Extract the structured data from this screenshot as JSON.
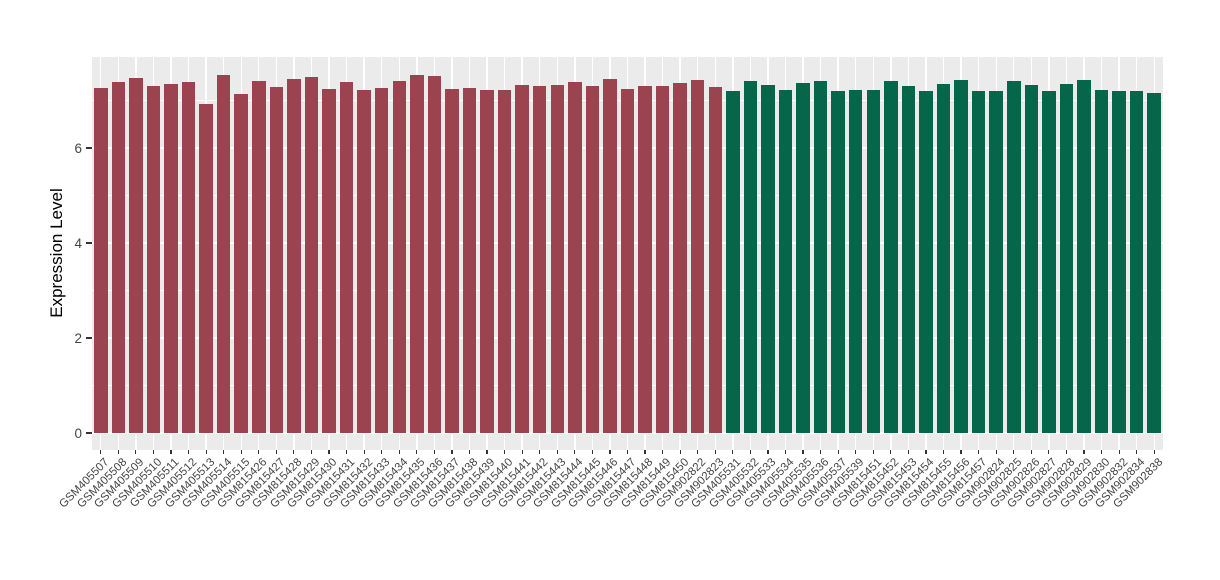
{
  "chart_data": {
    "type": "bar",
    "title": "",
    "xlabel": "",
    "ylabel": "Expression Level",
    "y_ticks": [
      0,
      2,
      4,
      6
    ],
    "ylim": [
      0,
      7.92
    ],
    "grid": "on",
    "legend": "none",
    "colors": {
      "panel_background": "#EBEBEB",
      "gridline": "#FFFFFF",
      "group_a_red": "#9B4450",
      "group_b_green": "#066649",
      "axis_text": "#454545",
      "axis_title": "#000000"
    },
    "samples": [
      {
        "id": "GSM405507",
        "value": 7.26,
        "group": "a"
      },
      {
        "id": "GSM405508",
        "value": 7.4,
        "group": "a"
      },
      {
        "id": "GSM405509",
        "value": 7.48,
        "group": "a"
      },
      {
        "id": "GSM405510",
        "value": 7.31,
        "group": "a"
      },
      {
        "id": "GSM405511",
        "value": 7.35,
        "group": "a"
      },
      {
        "id": "GSM405512",
        "value": 7.39,
        "group": "a"
      },
      {
        "id": "GSM405513",
        "value": 6.93,
        "group": "a"
      },
      {
        "id": "GSM405514",
        "value": 7.53,
        "group": "a"
      },
      {
        "id": "GSM405515",
        "value": 7.13,
        "group": "a"
      },
      {
        "id": "GSM815426",
        "value": 7.42,
        "group": "a"
      },
      {
        "id": "GSM815427",
        "value": 7.29,
        "group": "a"
      },
      {
        "id": "GSM815428",
        "value": 7.45,
        "group": "a"
      },
      {
        "id": "GSM815429",
        "value": 7.49,
        "group": "a"
      },
      {
        "id": "GSM815430",
        "value": 7.25,
        "group": "a"
      },
      {
        "id": "GSM815431",
        "value": 7.4,
        "group": "a"
      },
      {
        "id": "GSM815432",
        "value": 7.23,
        "group": "a"
      },
      {
        "id": "GSM815433",
        "value": 7.26,
        "group": "a"
      },
      {
        "id": "GSM815434",
        "value": 7.41,
        "group": "a"
      },
      {
        "id": "GSM815435",
        "value": 7.54,
        "group": "a"
      },
      {
        "id": "GSM815436",
        "value": 7.52,
        "group": "a"
      },
      {
        "id": "GSM815437",
        "value": 7.25,
        "group": "a"
      },
      {
        "id": "GSM815438",
        "value": 7.27,
        "group": "a"
      },
      {
        "id": "GSM815439",
        "value": 7.23,
        "group": "a"
      },
      {
        "id": "GSM815440",
        "value": 7.23,
        "group": "a"
      },
      {
        "id": "GSM815441",
        "value": 7.33,
        "group": "a"
      },
      {
        "id": "GSM815442",
        "value": 7.31,
        "group": "a"
      },
      {
        "id": "GSM815443",
        "value": 7.32,
        "group": "a"
      },
      {
        "id": "GSM815444",
        "value": 7.39,
        "group": "a"
      },
      {
        "id": "GSM815445",
        "value": 7.3,
        "group": "a"
      },
      {
        "id": "GSM815446",
        "value": 7.45,
        "group": "a"
      },
      {
        "id": "GSM815447",
        "value": 7.25,
        "group": "a"
      },
      {
        "id": "GSM815448",
        "value": 7.3,
        "group": "a"
      },
      {
        "id": "GSM815449",
        "value": 7.31,
        "group": "a"
      },
      {
        "id": "GSM815450",
        "value": 7.37,
        "group": "a"
      },
      {
        "id": "GSM902822",
        "value": 7.43,
        "group": "a"
      },
      {
        "id": "GSM902823",
        "value": 7.29,
        "group": "a"
      },
      {
        "id": "GSM405531",
        "value": 7.21,
        "group": "b"
      },
      {
        "id": "GSM405532",
        "value": 7.41,
        "group": "b"
      },
      {
        "id": "GSM405533",
        "value": 7.32,
        "group": "b"
      },
      {
        "id": "GSM405534",
        "value": 7.22,
        "group": "b"
      },
      {
        "id": "GSM405535",
        "value": 7.36,
        "group": "b"
      },
      {
        "id": "GSM405536",
        "value": 7.42,
        "group": "b"
      },
      {
        "id": "GSM405537",
        "value": 7.19,
        "group": "b"
      },
      {
        "id": "GSM405539",
        "value": 7.22,
        "group": "b"
      },
      {
        "id": "GSM815451",
        "value": 7.23,
        "group": "b"
      },
      {
        "id": "GSM815452",
        "value": 7.41,
        "group": "b"
      },
      {
        "id": "GSM815453",
        "value": 7.31,
        "group": "b"
      },
      {
        "id": "GSM815454",
        "value": 7.21,
        "group": "b"
      },
      {
        "id": "GSM815455",
        "value": 7.35,
        "group": "b"
      },
      {
        "id": "GSM815456",
        "value": 7.43,
        "group": "b"
      },
      {
        "id": "GSM815457",
        "value": 7.19,
        "group": "b"
      },
      {
        "id": "GSM902824",
        "value": 7.21,
        "group": "b"
      },
      {
        "id": "GSM902825",
        "value": 7.42,
        "group": "b"
      },
      {
        "id": "GSM902826",
        "value": 7.32,
        "group": "b"
      },
      {
        "id": "GSM902827",
        "value": 7.2,
        "group": "b"
      },
      {
        "id": "GSM902828",
        "value": 7.35,
        "group": "b"
      },
      {
        "id": "GSM902829",
        "value": 7.43,
        "group": "b"
      },
      {
        "id": "GSM902830",
        "value": 7.23,
        "group": "b"
      },
      {
        "id": "GSM902832",
        "value": 7.19,
        "group": "b"
      },
      {
        "id": "GSM902834",
        "value": 7.21,
        "group": "b"
      },
      {
        "id": "GSM902838",
        "value": 7.16,
        "group": "b"
      }
    ]
  }
}
